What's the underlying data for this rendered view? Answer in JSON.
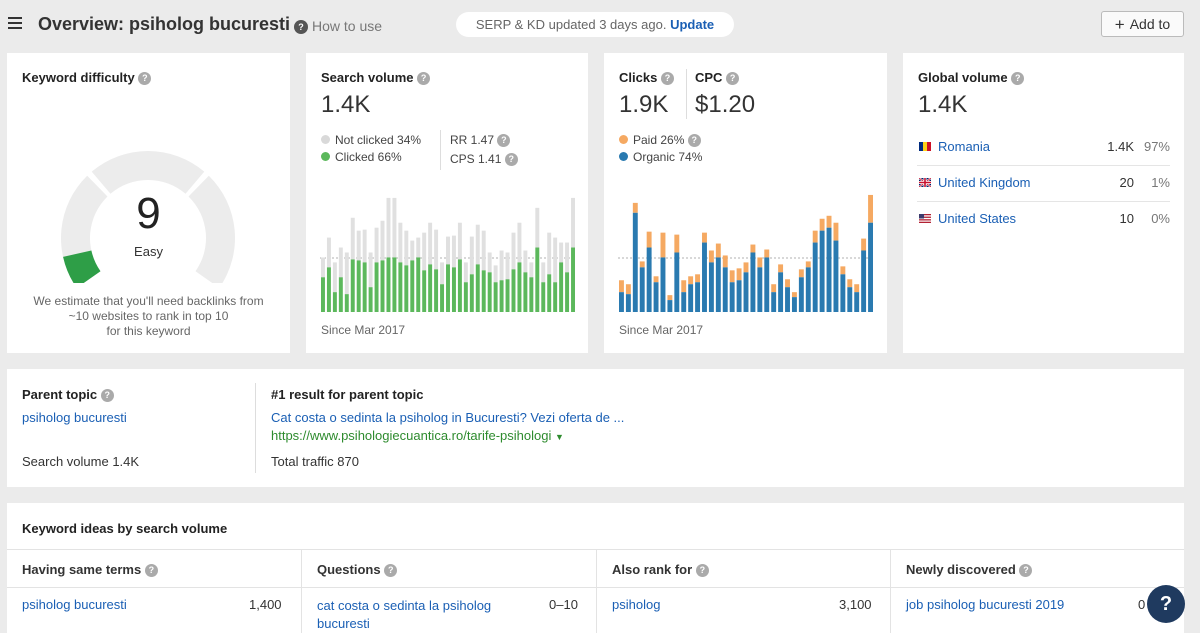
{
  "header": {
    "title": "Overview: psiholog bucuresti",
    "how_to_use": "How to use",
    "serp_status": "SERP & KD updated 3 days ago.",
    "update_label": "Update",
    "add_to_label": "Add to"
  },
  "keyword_difficulty": {
    "title": "Keyword difficulty",
    "value": "9",
    "label": "Easy",
    "estimate_line1": "We estimate that you'll need backlinks from",
    "estimate_line2": "~10 websites to rank in top 10",
    "estimate_line3": "for this keyword",
    "fill_fraction": 0.09,
    "fill_color": "#2e9e47",
    "track_color": "#ececec"
  },
  "search_volume": {
    "title": "Search volume",
    "value": "1.4K",
    "not_clicked": "Not clicked 34%",
    "clicked": "Clicked 66%",
    "rr": "RR 1.47",
    "cps": "CPS 1.41",
    "since": "Since Mar 2017",
    "colors": {
      "clicked": "#5cb85c",
      "not_clicked": "#e0e0e0"
    }
  },
  "clicks": {
    "clicks_title": "Clicks",
    "clicks_value": "1.9K",
    "cpc_title": "CPC",
    "cpc_value": "$1.20",
    "paid": "Paid 26%",
    "organic": "Organic 74%",
    "since": "Since Mar 2017",
    "colors": {
      "paid": "#f5a962",
      "organic": "#2a7ab0"
    }
  },
  "global_volume": {
    "title": "Global volume",
    "value": "1.4K",
    "countries": [
      {
        "name": "Romania",
        "volume": "1.4K",
        "pct": "97%",
        "flag": "ro-flag-icon"
      },
      {
        "name": "United Kingdom",
        "volume": "20",
        "pct": "1%",
        "flag": "uk-flag-icon"
      },
      {
        "name": "United States",
        "volume": "10",
        "pct": "0%",
        "flag": "us-flag-icon"
      }
    ]
  },
  "parent_topic": {
    "title": "Parent topic",
    "keyword": "psiholog bucuresti",
    "search_volume": "Search volume 1.4K",
    "result_title": "#1 result for parent topic",
    "result_link": "Cat costa o sedinta la psiholog in Bucuresti? Vezi oferta de ...",
    "result_url": "https://www.psihologiecuantica.ro/tarife-psihologi",
    "total_traffic": "Total traffic 870"
  },
  "keyword_ideas": {
    "title": "Keyword ideas by search volume",
    "columns": [
      {
        "header": "Having same terms",
        "keyword": "psiholog bucuresti",
        "value": "1,400"
      },
      {
        "header": "Questions",
        "keyword": "cat costa o sedinta la psiholog",
        "keyword_line2": "bucuresti",
        "value": "0–10"
      },
      {
        "header": "Also rank for",
        "keyword": "psiholog",
        "value": "3,100"
      },
      {
        "header": "Newly discovered",
        "keyword": "job psiholog bucuresti 2019",
        "value": "0"
      }
    ]
  },
  "help_fab": "?",
  "chart_data": [
    {
      "type": "bar",
      "name": "search_volume_history",
      "stacked": true,
      "series": [
        {
          "name": "Clicked",
          "values": [
            35,
            45,
            20,
            35,
            18,
            53,
            52,
            50,
            25,
            50,
            52,
            55,
            55,
            50,
            47,
            52,
            55,
            42,
            48,
            43,
            28,
            48,
            45,
            53,
            30,
            38,
            48,
            42,
            40,
            30,
            32,
            33,
            43,
            50,
            40,
            35,
            65,
            30,
            38,
            30,
            50,
            40,
            65
          ]
        },
        {
          "name": "Not clicked",
          "values": [
            20,
            30,
            30,
            30,
            42,
            42,
            30,
            33,
            35,
            35,
            40,
            60,
            60,
            40,
            35,
            20,
            20,
            38,
            42,
            40,
            22,
            28,
            32,
            37,
            20,
            38,
            40,
            40,
            20,
            17,
            30,
            27,
            37,
            40,
            22,
            15,
            40,
            20,
            42,
            45,
            20,
            30,
            50
          ]
        }
      ],
      "since": "Since Mar 2017"
    },
    {
      "type": "bar",
      "name": "clicks_history",
      "stacked": true,
      "series": [
        {
          "name": "Organic",
          "values": [
            20,
            18,
            100,
            45,
            65,
            30,
            55,
            12,
            60,
            20,
            28,
            30,
            70,
            50,
            55,
            45,
            30,
            32,
            40,
            60,
            45,
            55,
            20,
            40,
            25,
            15,
            35,
            45,
            70,
            82,
            85,
            72,
            38,
            25,
            20,
            62,
            90
          ]
        },
        {
          "name": "Paid",
          "values": [
            12,
            10,
            10,
            6,
            16,
            6,
            25,
            5,
            18,
            12,
            8,
            8,
            10,
            12,
            14,
            12,
            12,
            12,
            10,
            8,
            10,
            8,
            8,
            8,
            8,
            5,
            8,
            6,
            12,
            12,
            12,
            18,
            8,
            8,
            8,
            12,
            28
          ]
        }
      ],
      "since": "Since Mar 2017"
    }
  ]
}
